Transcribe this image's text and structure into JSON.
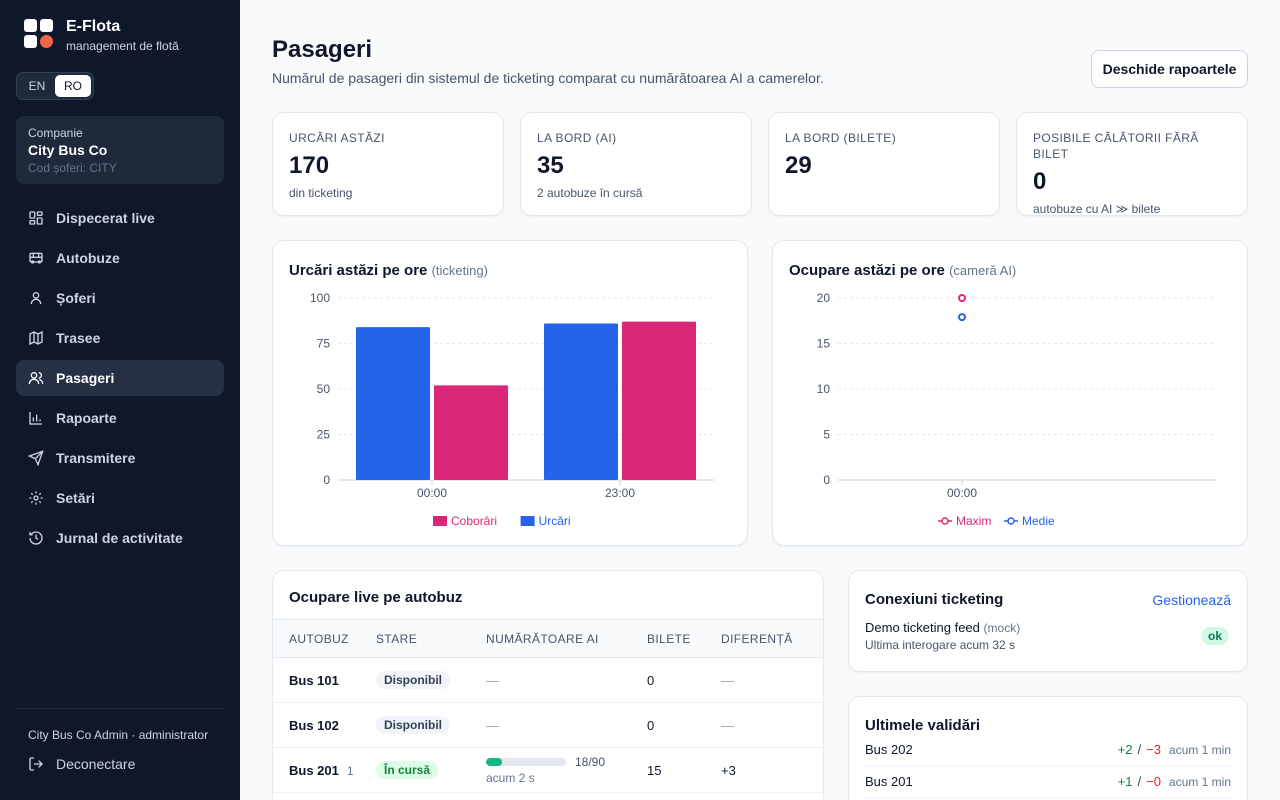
{
  "brand": {
    "name": "E-Flota",
    "subtitle": "management de flotă"
  },
  "lang": {
    "en": "EN",
    "ro": "RO",
    "active": "RO"
  },
  "company": {
    "label": "Companie",
    "name": "City Bus Co",
    "code": "Cod șoferi: CITY"
  },
  "nav": [
    {
      "label": "Dispecerat live",
      "icon": "dashboard-icon"
    },
    {
      "label": "Autobuze",
      "icon": "bus-icon"
    },
    {
      "label": "Șoferi",
      "icon": "user-icon"
    },
    {
      "label": "Trasee",
      "icon": "map-icon"
    },
    {
      "label": "Pasageri",
      "icon": "users-icon",
      "active": true
    },
    {
      "label": "Rapoarte",
      "icon": "bar-chart-icon"
    },
    {
      "label": "Transmitere",
      "icon": "send-icon"
    },
    {
      "label": "Setări",
      "icon": "gear-icon"
    },
    {
      "label": "Jurnal de activitate",
      "icon": "history-icon"
    }
  ],
  "sidebar_footer": {
    "user": "City Bus Co Admin · administrator",
    "logout": "Deconectare"
  },
  "header": {
    "title": "Pasageri",
    "subtitle": "Numărul de pasageri din sistemul de ticketing comparat cu numărătoarea AI a camerelor.",
    "reports_button": "Deschide rapoartele"
  },
  "stats": [
    {
      "label": "Urcări astăzi",
      "value": "170",
      "hint": "din ticketing"
    },
    {
      "label": "La bord (AI)",
      "value": "35",
      "hint": "2 autobuze în cursă"
    },
    {
      "label": "La bord (bilete)",
      "value": "29",
      "hint": ""
    },
    {
      "label": "Posibile călătorii fără bilet",
      "value": "0",
      "hint": "autobuze cu AI ≫ bilete"
    }
  ],
  "chart_data": [
    {
      "type": "bar",
      "title": "Urcări astăzi pe ore",
      "subtitle": "(ticketing)",
      "categories": [
        "00:00",
        "23:00"
      ],
      "series": [
        {
          "name": "Urcări",
          "values": [
            84,
            86
          ],
          "color": "#2563eb"
        },
        {
          "name": "Coborâri",
          "values": [
            52,
            87
          ],
          "color": "#db2777"
        }
      ],
      "ylim": [
        0,
        100
      ],
      "yticks": [
        0,
        25,
        50,
        75,
        100
      ],
      "grid": true,
      "legend": "bottom",
      "legend_order": [
        "Coborâri",
        "Urcări"
      ]
    },
    {
      "type": "scatter",
      "title": "Ocupare astăzi pe ore",
      "subtitle": "(cameră AI)",
      "categories": [
        "00:00"
      ],
      "series": [
        {
          "name": "Maxim",
          "values": [
            20
          ],
          "color": "#db2777"
        },
        {
          "name": "Medie",
          "values": [
            17.9
          ],
          "color": "#2563eb"
        }
      ],
      "ylim": [
        0,
        20
      ],
      "yticks": [
        0,
        5,
        10,
        15,
        20
      ],
      "grid": true,
      "legend": "bottom"
    }
  ],
  "live_table": {
    "title": "Ocupare live pe autobuz",
    "columns": [
      "Autobuz",
      "Stare",
      "Numărătoare AI",
      "Bilete",
      "Diferență"
    ],
    "rows": [
      {
        "bus": "Bus 101",
        "idx": "",
        "status": "Disponibil",
        "running": false,
        "ai": "—",
        "ai_value": null,
        "ai_capacity": null,
        "ai_ago": "",
        "tickets": "0",
        "diff": "—"
      },
      {
        "bus": "Bus 102",
        "idx": "",
        "status": "Disponibil",
        "running": false,
        "ai": "—",
        "ai_value": null,
        "ai_capacity": null,
        "ai_ago": "",
        "tickets": "0",
        "diff": "—"
      },
      {
        "bus": "Bus 201",
        "idx": "1",
        "status": "În cursă",
        "running": true,
        "ai": "18/90",
        "ai_value": 18,
        "ai_capacity": 90,
        "ai_ago": "acum 2 s",
        "tickets": "15",
        "diff": "+3"
      }
    ]
  },
  "ticketing": {
    "title": "Conexiuni ticketing",
    "manage": "Gestionează",
    "feed_name": "Demo ticketing feed",
    "feed_tag": "(mock)",
    "last_poll": "Ultima interogare acum 32 s",
    "status": "ok"
  },
  "validations": {
    "title": "Ultimele validări",
    "items": [
      {
        "bus": "Bus 202",
        "plus": "+2",
        "minus": "−3",
        "ago": "acum 1 min"
      },
      {
        "bus": "Bus 201",
        "plus": "+1",
        "minus": "−0",
        "ago": "acum 1 min"
      }
    ]
  }
}
